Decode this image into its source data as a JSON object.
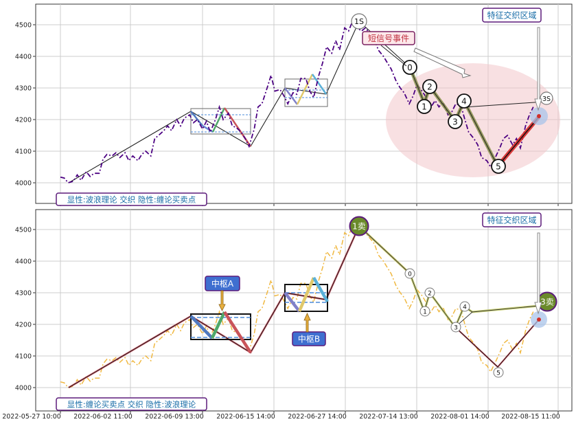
{
  "chart_data": [
    {
      "type": "line",
      "panel": "top",
      "ylim": [
        3940,
        4565
      ],
      "y_ticks": [
        4000,
        4100,
        4200,
        4300,
        4400,
        4500
      ],
      "x_tick_labels": [
        "2022-05-27 10:00",
        "2022-06-02 11:00",
        "2022-06-09 13:00",
        "2022-06-15 14:00",
        "2022-06-27 14:00",
        "2022-07-14 13:00",
        "2022-08-01 14:00",
        "2022-08-15 11:00"
      ],
      "grid": true,
      "price_series": {
        "name": "",
        "color": "#4b0082",
        "style": "dash-dot",
        "values": [
          [
            0.0,
            4018
          ],
          [
            0.6,
            4015
          ],
          [
            1.2,
            4000
          ],
          [
            2.0,
            4005
          ],
          [
            2.6,
            4025
          ],
          [
            3.2,
            4008
          ],
          [
            4.0,
            4035
          ],
          [
            4.6,
            4020
          ],
          [
            5.2,
            4030
          ],
          [
            6.0,
            4030
          ],
          [
            6.6,
            4075
          ],
          [
            7.2,
            4090
          ],
          [
            8.0,
            4085
          ],
          [
            8.6,
            4095
          ],
          [
            9.2,
            4080
          ],
          [
            10.0,
            4095
          ],
          [
            10.6,
            4070
          ],
          [
            11.2,
            4085
          ],
          [
            12.0,
            4070
          ],
          [
            12.6,
            4090
          ],
          [
            13.2,
            4100
          ],
          [
            14.0,
            4085
          ],
          [
            14.6,
            4140
          ],
          [
            15.2,
            4150
          ],
          [
            16.0,
            4165
          ],
          [
            16.6,
            4180
          ],
          [
            17.2,
            4165
          ],
          [
            18.0,
            4200
          ],
          [
            18.6,
            4180
          ],
          [
            19.2,
            4205
          ],
          [
            20.0,
            4215
          ],
          [
            20.6,
            4190
          ],
          [
            21.2,
            4200
          ],
          [
            22.0,
            4170
          ],
          [
            22.6,
            4195
          ],
          [
            23.2,
            4160
          ],
          [
            24.0,
            4200
          ],
          [
            24.6,
            4240
          ],
          [
            25.2,
            4200
          ],
          [
            26.0,
            4220
          ],
          [
            26.6,
            4180
          ],
          [
            27.2,
            4175
          ],
          [
            28.0,
            4160
          ],
          [
            28.6,
            4140
          ],
          [
            29.2,
            4115
          ],
          [
            30.0,
            4170
          ],
          [
            30.6,
            4240
          ],
          [
            31.2,
            4250
          ],
          [
            32.0,
            4300
          ],
          [
            32.6,
            4340
          ],
          [
            33.2,
            4290
          ],
          [
            34.0,
            4295
          ],
          [
            34.6,
            4275
          ],
          [
            35.2,
            4250
          ],
          [
            36.0,
            4285
          ],
          [
            36.6,
            4280
          ],
          [
            37.2,
            4330
          ],
          [
            38.0,
            4330
          ],
          [
            38.6,
            4290
          ],
          [
            39.2,
            4270
          ],
          [
            40.0,
            4340
          ],
          [
            40.6,
            4380
          ],
          [
            41.2,
            4430
          ],
          [
            42.0,
            4410
          ],
          [
            42.6,
            4450
          ],
          [
            43.2,
            4420
          ],
          [
            44.0,
            4490
          ],
          [
            44.6,
            4480
          ],
          [
            45.2,
            4510
          ],
          [
            46.0,
            4490
          ],
          [
            46.6,
            4480
          ],
          [
            47.2,
            4490
          ],
          [
            48.0,
            4470
          ],
          [
            48.6,
            4455
          ],
          [
            49.2,
            4420
          ],
          [
            50.0,
            4400
          ],
          [
            50.6,
            4380
          ],
          [
            51.2,
            4360
          ],
          [
            52.0,
            4320
          ],
          [
            52.6,
            4300
          ],
          [
            53.2,
            4285
          ],
          [
            54.0,
            4250
          ],
          [
            54.6,
            4275
          ],
          [
            55.2,
            4310
          ],
          [
            56.0,
            4290
          ],
          [
            56.6,
            4270
          ],
          [
            57.2,
            4235
          ],
          [
            58.0,
            4260
          ],
          [
            58.6,
            4240
          ],
          [
            59.2,
            4255
          ],
          [
            60.0,
            4215
          ],
          [
            60.6,
            4225
          ],
          [
            61.2,
            4250
          ],
          [
            62.0,
            4245
          ],
          [
            62.6,
            4200
          ],
          [
            63.2,
            4160
          ],
          [
            64.0,
            4140
          ],
          [
            64.6,
            4120
          ],
          [
            65.2,
            4080
          ],
          [
            66.0,
            4070
          ],
          [
            66.6,
            4050
          ],
          [
            67.2,
            4075
          ],
          [
            68.0,
            4110
          ],
          [
            68.6,
            4140
          ],
          [
            69.2,
            4150
          ],
          [
            70.0,
            4120
          ],
          [
            70.6,
            4140
          ],
          [
            71.2,
            4110
          ],
          [
            72.0,
            4180
          ],
          [
            72.6,
            4215
          ],
          [
            73.2,
            4240
          ]
        ]
      },
      "annotations": {
        "wave_labels": [
          "0",
          "1",
          "2",
          "3",
          "4",
          "5"
        ],
        "sell_label": "1S",
        "sell3_label": "3S",
        "short_signal_label": "短信号事件",
        "feature_zone_label": "特征交织区域",
        "legend": "显性:波浪理论 交织 隐性:缠论买卖点"
      }
    },
    {
      "type": "line",
      "panel": "bottom",
      "ylim": [
        3940,
        4565
      ],
      "y_ticks": [
        4000,
        4100,
        4200,
        4300,
        4400,
        4500
      ],
      "x_tick_labels": [
        "2022-05-27 10:00",
        "2022-06-02 11:00",
        "2022-06-09 13:00",
        "2022-06-15 14:00",
        "2022-06-27 14:00",
        "2022-07-14 13:00",
        "2022-08-01 14:00",
        "2022-08-15 11:00"
      ],
      "grid": true,
      "price_series": {
        "name": "",
        "color": "#f0b840",
        "style": "dash-dot",
        "values": [
          [
            0.0,
            4018
          ],
          [
            0.6,
            4015
          ],
          [
            1.2,
            4000
          ],
          [
            2.0,
            4005
          ],
          [
            2.6,
            4025
          ],
          [
            3.2,
            4008
          ],
          [
            4.0,
            4035
          ],
          [
            4.6,
            4020
          ],
          [
            5.2,
            4030
          ],
          [
            6.0,
            4030
          ],
          [
            6.6,
            4075
          ],
          [
            7.2,
            4090
          ],
          [
            8.0,
            4085
          ],
          [
            8.6,
            4095
          ],
          [
            9.2,
            4080
          ],
          [
            10.0,
            4095
          ],
          [
            10.6,
            4070
          ],
          [
            11.2,
            4085
          ],
          [
            12.0,
            4070
          ],
          [
            12.6,
            4090
          ],
          [
            13.2,
            4100
          ],
          [
            14.0,
            4085
          ],
          [
            14.6,
            4140
          ],
          [
            15.2,
            4150
          ],
          [
            16.0,
            4165
          ],
          [
            16.6,
            4180
          ],
          [
            17.2,
            4165
          ],
          [
            18.0,
            4200
          ],
          [
            18.6,
            4180
          ],
          [
            19.2,
            4205
          ],
          [
            20.0,
            4215
          ],
          [
            20.6,
            4190
          ],
          [
            21.2,
            4200
          ],
          [
            22.0,
            4170
          ],
          [
            22.6,
            4195
          ],
          [
            23.2,
            4160
          ],
          [
            24.0,
            4200
          ],
          [
            24.6,
            4240
          ],
          [
            25.2,
            4200
          ],
          [
            26.0,
            4220
          ],
          [
            26.6,
            4180
          ],
          [
            27.2,
            4175
          ],
          [
            28.0,
            4160
          ],
          [
            28.6,
            4140
          ],
          [
            29.2,
            4115
          ],
          [
            30.0,
            4170
          ],
          [
            30.6,
            4240
          ],
          [
            31.2,
            4250
          ],
          [
            32.0,
            4300
          ],
          [
            32.6,
            4340
          ],
          [
            33.2,
            4290
          ],
          [
            34.0,
            4295
          ],
          [
            34.6,
            4275
          ],
          [
            35.2,
            4250
          ],
          [
            36.0,
            4285
          ],
          [
            36.6,
            4280
          ],
          [
            37.2,
            4330
          ],
          [
            38.0,
            4330
          ],
          [
            38.6,
            4290
          ],
          [
            39.2,
            4270
          ],
          [
            40.0,
            4340
          ],
          [
            40.6,
            4380
          ],
          [
            41.2,
            4430
          ],
          [
            42.0,
            4410
          ],
          [
            42.6,
            4450
          ],
          [
            43.2,
            4420
          ],
          [
            44.0,
            4490
          ],
          [
            44.6,
            4480
          ],
          [
            45.2,
            4510
          ],
          [
            46.0,
            4490
          ],
          [
            46.6,
            4480
          ],
          [
            47.2,
            4490
          ],
          [
            48.0,
            4470
          ],
          [
            48.6,
            4455
          ],
          [
            49.2,
            4420
          ],
          [
            50.0,
            4400
          ],
          [
            50.6,
            4380
          ],
          [
            51.2,
            4360
          ],
          [
            52.0,
            4320
          ],
          [
            52.6,
            4300
          ],
          [
            53.2,
            4285
          ],
          [
            54.0,
            4250
          ],
          [
            54.6,
            4275
          ],
          [
            55.2,
            4310
          ],
          [
            56.0,
            4290
          ],
          [
            56.6,
            4270
          ],
          [
            57.2,
            4235
          ],
          [
            58.0,
            4260
          ],
          [
            58.6,
            4240
          ],
          [
            59.2,
            4255
          ],
          [
            60.0,
            4215
          ],
          [
            60.6,
            4225
          ],
          [
            61.2,
            4250
          ],
          [
            62.0,
            4245
          ],
          [
            62.6,
            4200
          ],
          [
            63.2,
            4160
          ],
          [
            64.0,
            4140
          ],
          [
            64.6,
            4120
          ],
          [
            65.2,
            4080
          ],
          [
            66.0,
            4070
          ],
          [
            66.6,
            4050
          ],
          [
            67.2,
            4075
          ],
          [
            68.0,
            4110
          ],
          [
            68.6,
            4140
          ],
          [
            69.2,
            4150
          ],
          [
            70.0,
            4120
          ],
          [
            70.6,
            4140
          ],
          [
            71.2,
            4110
          ],
          [
            72.0,
            4180
          ],
          [
            72.6,
            4215
          ],
          [
            73.2,
            4240
          ]
        ]
      },
      "annotations": {
        "wave_labels": [
          "0",
          "1",
          "2",
          "3",
          "4",
          "5"
        ],
        "sell_label": "1卖",
        "sell3_label": "3卖",
        "pivot_a_label": "中枢A",
        "pivot_b_label": "中枢B",
        "feature_zone_label": "特征交织区域",
        "legend": "显性:缠论买卖点 交织 隐性:波浪理论"
      }
    }
  ]
}
